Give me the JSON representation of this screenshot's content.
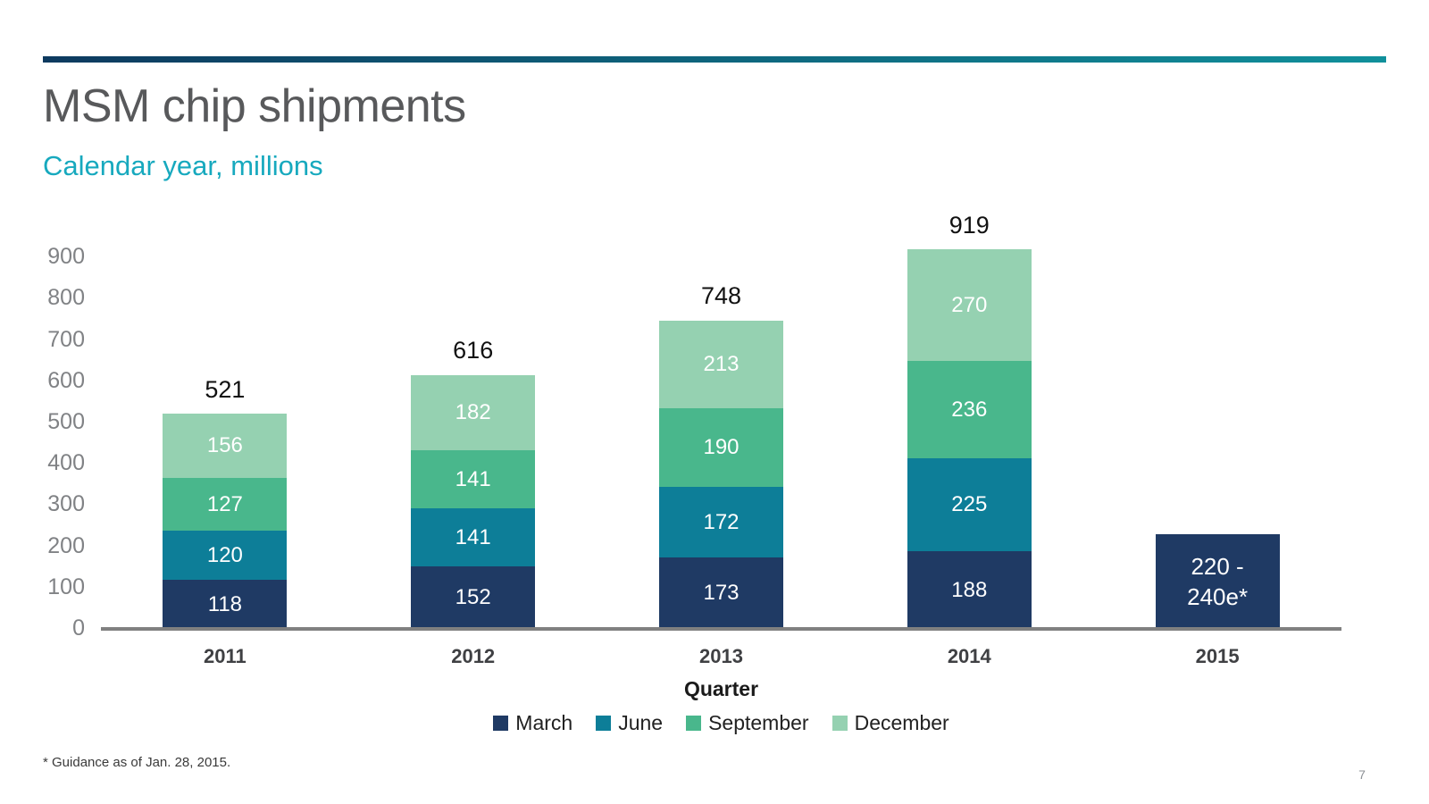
{
  "header": {
    "title": "MSM chip shipments",
    "subtitle": "Calendar year, millions",
    "title_color": "#58595B",
    "subtitle_color": "#17A9BE",
    "accent_gradient_start": "#0D3A5F",
    "accent_gradient_end": "#10909B"
  },
  "chart_data": {
    "type": "stacked_bar",
    "title": "MSM chip shipments",
    "subtitle": "Calendar year, millions",
    "categories": [
      "2011",
      "2012",
      "2013",
      "2014",
      "2015"
    ],
    "series": [
      {
        "name": "March",
        "color": "#1F3A64",
        "values": [
          118,
          152,
          173,
          188,
          null
        ]
      },
      {
        "name": "June",
        "color": "#0D7E98",
        "values": [
          120,
          141,
          172,
          225,
          null
        ]
      },
      {
        "name": "September",
        "color": "#49B78C",
        "values": [
          127,
          141,
          190,
          236,
          null
        ]
      },
      {
        "name": "December",
        "color": "#95D1B1",
        "values": [
          156,
          182,
          213,
          270,
          null
        ]
      }
    ],
    "totals": [
      521,
      616,
      748,
      919,
      null
    ],
    "estimate_bar": {
      "category": "2015",
      "label_lines": [
        "220 -",
        "240e*"
      ],
      "value_range": [
        220,
        240
      ],
      "plot_value": 230,
      "color": "#1F3A64"
    },
    "xlabel": "Quarter",
    "ylabel": "",
    "ylim": [
      0,
      900
    ],
    "yticks": [
      0,
      100,
      200,
      300,
      400,
      500,
      600,
      700,
      800,
      900
    ],
    "grid": false,
    "legend_position": "bottom",
    "axis_color": "#808080"
  },
  "footnote": "* Guidance as of Jan. 28, 2015.",
  "page_number": "7"
}
